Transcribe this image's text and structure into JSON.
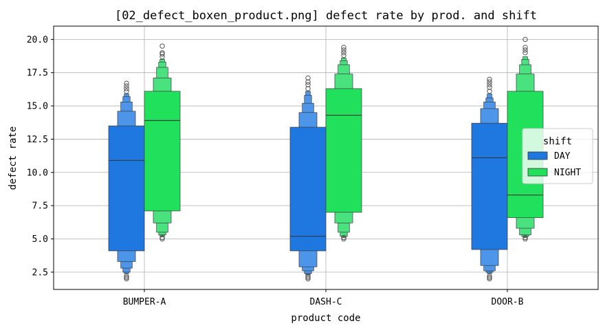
{
  "chart_data": {
    "type": "boxen",
    "title": "[02_defect_boxen_product.png] defect rate by prod. and shift",
    "xlabel": "product code",
    "ylabel": "defect rate",
    "ylim": [
      1.2,
      21.0
    ],
    "yticks": [
      "2.5",
      "5.0",
      "7.5",
      "10.0",
      "12.5",
      "15.0",
      "17.5",
      "20.0"
    ],
    "categories": [
      "BUMPER-A",
      "DASH-C",
      "DOOR-B"
    ],
    "grid": true,
    "legend": {
      "title": "shift",
      "position": "center-right"
    },
    "series": [
      {
        "name": "DAY",
        "color": "#1f77e0",
        "light_color": "#4d95e8",
        "groups": [
          {
            "levels": [
              [
                4.1,
                13.5
              ],
              [
                3.3,
                14.6
              ],
              [
                2.8,
                15.3
              ],
              [
                2.5,
                15.7
              ],
              [
                2.4,
                15.9
              ]
            ],
            "median": 10.9,
            "outliers": [
              2.0,
              2.1,
              2.2,
              16.1,
              16.3,
              16.5,
              16.7
            ]
          },
          {
            "levels": [
              [
                4.1,
                13.4
              ],
              [
                2.9,
                14.5
              ],
              [
                2.6,
                15.2
              ],
              [
                2.4,
                15.8
              ],
              [
                2.3,
                16.1
              ]
            ],
            "median": 5.2,
            "outliers": [
              2.0,
              2.1,
              2.2,
              16.3,
              16.6,
              16.8,
              17.1
            ]
          },
          {
            "levels": [
              [
                4.2,
                13.7
              ],
              [
                3.0,
                14.8
              ],
              [
                2.6,
                15.3
              ],
              [
                2.5,
                15.6
              ],
              [
                2.4,
                15.9
              ]
            ],
            "median": 11.1,
            "outliers": [
              2.0,
              2.1,
              2.2,
              16.1,
              16.4,
              16.6,
              16.8,
              17.0
            ]
          }
        ]
      },
      {
        "name": "NIGHT",
        "color": "#21e05c",
        "light_color": "#4ae27e",
        "groups": [
          {
            "levels": [
              [
                7.1,
                16.1
              ],
              [
                6.2,
                17.1
              ],
              [
                5.5,
                17.9
              ],
              [
                5.3,
                18.3
              ],
              [
                5.2,
                18.5
              ]
            ],
            "median": 13.9,
            "outliers": [
              5.0,
              5.1,
              18.7,
              18.9,
              19.0,
              19.5
            ]
          },
          {
            "levels": [
              [
                7.0,
                16.3
              ],
              [
                6.2,
                17.4
              ],
              [
                5.5,
                18.1
              ],
              [
                5.2,
                18.4
              ],
              [
                5.1,
                18.6
              ]
            ],
            "median": 14.3,
            "outliers": [
              5.0,
              5.1,
              18.8,
              19.0,
              19.2,
              19.4
            ]
          },
          {
            "levels": [
              [
                6.6,
                16.1
              ],
              [
                5.8,
                17.4
              ],
              [
                5.3,
                18.1
              ],
              [
                5.2,
                18.5
              ],
              [
                5.1,
                18.7
              ]
            ],
            "median": 8.3,
            "outliers": [
              5.0,
              5.1,
              19.0,
              19.2,
              19.4,
              20.0
            ]
          }
        ]
      }
    ]
  }
}
